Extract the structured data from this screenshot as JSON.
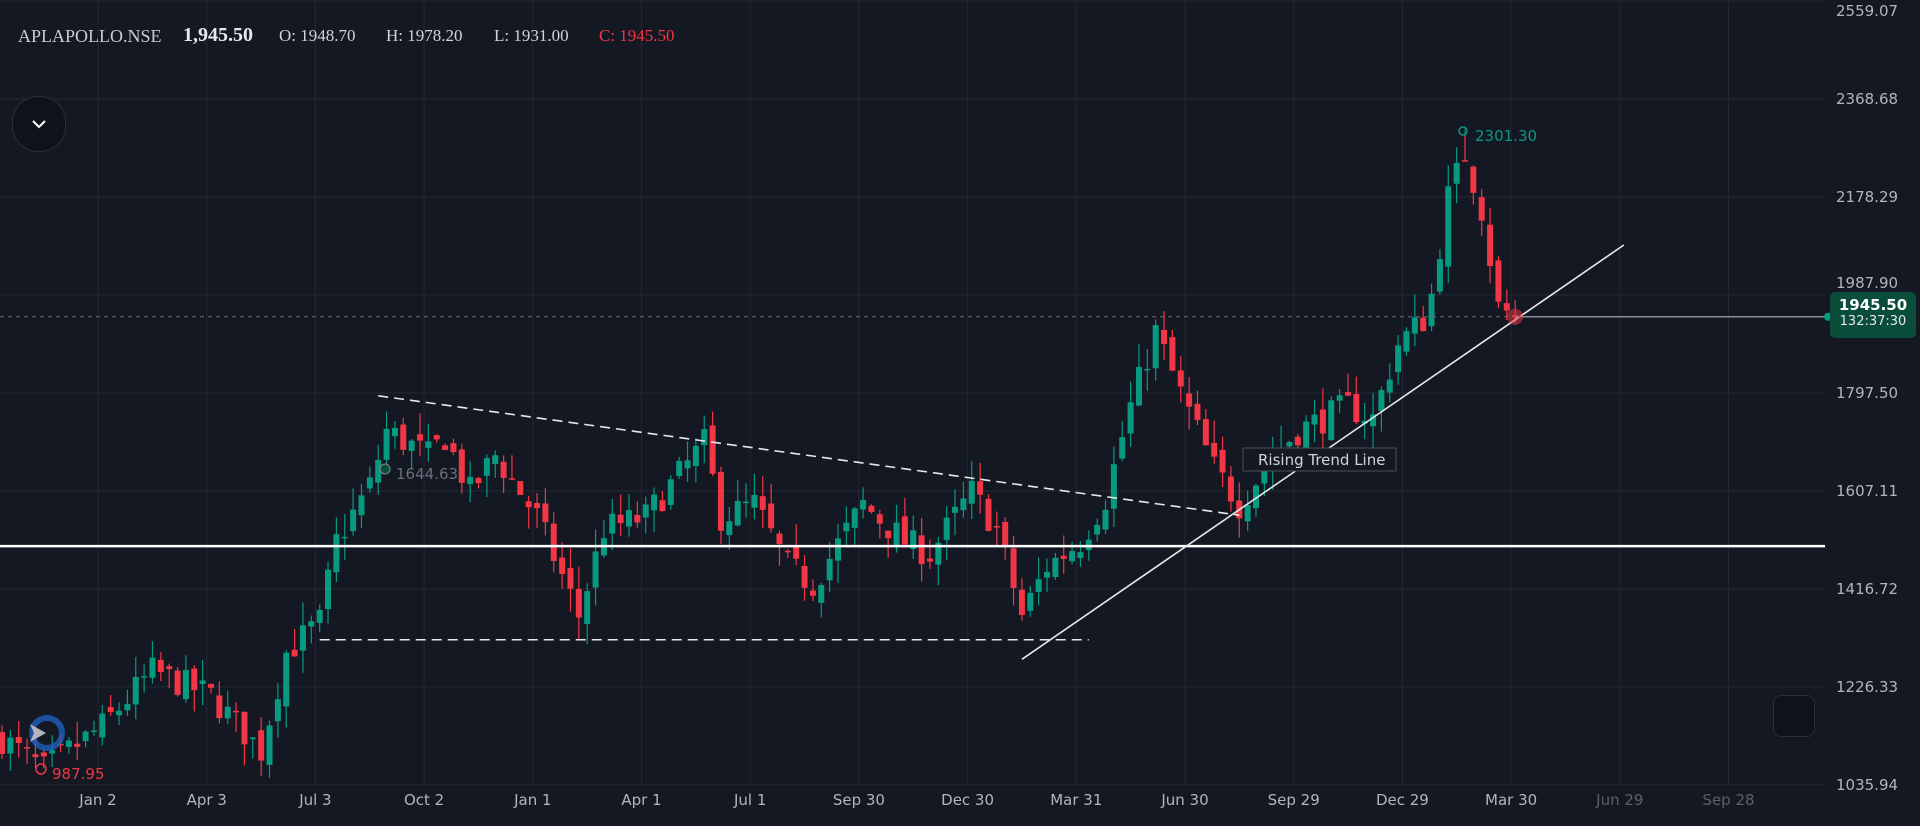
{
  "header": {
    "symbol": "APLAPOLLO.NSE",
    "last": "1,945.50",
    "open": "O: 1948.70",
    "high": "H: 1978.20",
    "low": "L: 1931.00",
    "close": "C: 1945.50"
  },
  "price_tag": {
    "price": "1945.50",
    "countdown": "132:37:30"
  },
  "colors": {
    "bg": "#141823",
    "up": "#089981",
    "down": "#f23645",
    "grid": "#232733",
    "text": "#b2b5be"
  },
  "chart_data": {
    "type": "candlestick",
    "title": "APLAPOLLO.NSE",
    "interval": "weekly",
    "ylim": [
      1035.94,
      2559.07
    ],
    "y_ticks": [
      "2559.07",
      "2368.68",
      "2178.29",
      "1987.90",
      "1797.50",
      "1607.11",
      "1416.72",
      "1226.33",
      "1035.94"
    ],
    "x_ticks": [
      "Jan 2",
      "Apr 3",
      "Jul 3",
      "Oct 2",
      "Jan 1",
      "Apr 1",
      "Jul 1",
      "Sep 30",
      "Dec 30",
      "Mar 31",
      "Jun 30",
      "Sep 29",
      "Dec 29",
      "Mar 30",
      "Jun 29",
      "Sep 28"
    ],
    "x_ticks_future_from": 14,
    "close_anchors_week_price": [
      [
        0,
        1126
      ],
      [
        5,
        1066
      ],
      [
        12,
        1150
      ],
      [
        18,
        1257
      ],
      [
        25,
        1209
      ],
      [
        31,
        1102
      ],
      [
        34,
        1293
      ],
      [
        38,
        1353
      ],
      [
        40,
        1509
      ],
      [
        44,
        1617
      ],
      [
        46,
        1724
      ],
      [
        51,
        1676
      ],
      [
        53,
        1712
      ],
      [
        56,
        1605
      ],
      [
        59,
        1676
      ],
      [
        64,
        1557
      ],
      [
        69,
        1365
      ],
      [
        72,
        1533
      ],
      [
        77,
        1557
      ],
      [
        84,
        1700
      ],
      [
        86,
        1557
      ],
      [
        90,
        1581
      ],
      [
        94,
        1461
      ],
      [
        97,
        1425
      ],
      [
        103,
        1581
      ],
      [
        108,
        1509
      ],
      [
        111,
        1485
      ],
      [
        116,
        1605
      ],
      [
        119,
        1533
      ],
      [
        122,
        1365
      ],
      [
        125,
        1461
      ],
      [
        129,
        1509
      ],
      [
        132,
        1593
      ],
      [
        135,
        1772
      ],
      [
        138,
        1916
      ],
      [
        141,
        1796
      ],
      [
        145,
        1652
      ],
      [
        148,
        1581
      ],
      [
        152,
        1676
      ],
      [
        155,
        1724
      ],
      [
        161,
        1772
      ],
      [
        164,
        1748
      ],
      [
        167,
        1892
      ],
      [
        170,
        1940
      ],
      [
        171,
        1988
      ],
      [
        173,
        2179
      ],
      [
        175,
        2263
      ],
      [
        177,
        2155
      ],
      [
        179,
        1964
      ],
      [
        181,
        1945.5
      ]
    ],
    "last_price": 1945.5,
    "annotations": {
      "high_label": "2301.30",
      "low_label": "987.95",
      "mid_label": "1644.63",
      "trend_label": "Rising Trend Line"
    },
    "horizontal_support": 1500,
    "lines": [
      {
        "name": "descending-trend",
        "style": "dashed",
        "from": [
          45,
          1792
        ],
        "to": [
          148,
          1560
        ]
      },
      {
        "name": "support-base",
        "style": "dashed",
        "from": [
          38,
          1318
        ],
        "to": [
          130,
          1318
        ]
      },
      {
        "name": "rising-trend",
        "style": "solid",
        "from": [
          122,
          1280
        ],
        "to": [
          194,
          2085
        ]
      }
    ]
  }
}
